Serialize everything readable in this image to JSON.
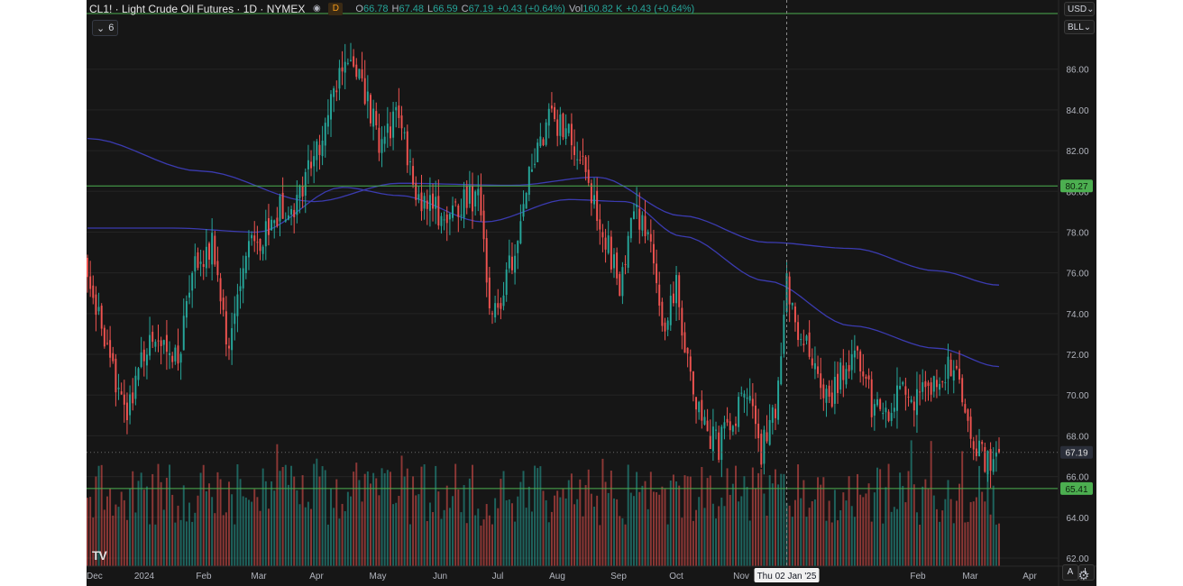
{
  "header": {
    "symbol_title": "CL1! · Light Crude Oil Futures · 1D · NYMEX",
    "delay_badge": "D",
    "ohlc": {
      "open_label": "O",
      "open": "66.78",
      "high_label": "H",
      "high": "67.48",
      "low_label": "L",
      "low": "66.59",
      "close_label": "C",
      "close": "67.19",
      "change": "+0.43 (+0.64%)",
      "volume_label": "Vol",
      "volume": "160.82 K",
      "volume_change": "+0.43 (+0.64%)"
    }
  },
  "indicator_toggle": {
    "count": "6"
  },
  "currency_select": {
    "value": "USD"
  },
  "unit_select": {
    "value": "BLL"
  },
  "crosshair_date_label": "Thu 02 Jan '25",
  "price_tags": {
    "resistance": "80.27",
    "last_price": "67.19",
    "support": "65.41"
  },
  "bottom_buttons": {
    "auto": "A",
    "log": "L"
  },
  "colors": {
    "background": "#161616",
    "up": "#26a69a",
    "down": "#ef5350",
    "ma": "#3b3bb0",
    "level_line": "#4caf50",
    "grid": "#242424"
  },
  "chart_data": {
    "type": "candlestick",
    "symbol": "CL1!",
    "interval": "1D",
    "y_axis_ticks": [
      "62.00",
      "64.00",
      "66.00",
      "68.00",
      "70.00",
      "72.00",
      "74.00",
      "76.00",
      "78.00",
      "80.00",
      "82.00",
      "84.00",
      "86.00"
    ],
    "y_range": [
      61.6,
      88.6
    ],
    "x_axis_labels": [
      "Dec",
      "2024",
      "Feb",
      "Mar",
      "Apr",
      "May",
      "Jun",
      "Jul",
      "Aug",
      "Sep",
      "Oct",
      "Nov",
      "Dec",
      "Feb",
      "Mar",
      "Apr"
    ],
    "horizontal_levels": [
      80.27,
      65.41
    ],
    "last_price": 67.19,
    "trading_days": 322,
    "key_closes": [
      [
        0,
        76.2
      ],
      [
        8,
        71.5
      ],
      [
        14,
        69.2
      ],
      [
        20,
        72.1
      ],
      [
        26,
        73.0
      ],
      [
        32,
        71.8
      ],
      [
        38,
        76.5
      ],
      [
        44,
        77.4
      ],
      [
        50,
        72.0
      ],
      [
        56,
        76.9
      ],
      [
        62,
        77.8
      ],
      [
        68,
        79.1
      ],
      [
        73,
        78.6
      ],
      [
        78,
        81.4
      ],
      [
        84,
        83.0
      ],
      [
        91,
        86.9
      ],
      [
        97,
        85.5
      ],
      [
        103,
        82.3
      ],
      [
        110,
        84.0
      ],
      [
        116,
        79.8
      ],
      [
        122,
        79.3
      ],
      [
        127,
        78.4
      ],
      [
        133,
        79.4
      ],
      [
        138,
        79.9
      ],
      [
        143,
        73.4
      ],
      [
        148,
        75.6
      ],
      [
        153,
        78.6
      ],
      [
        158,
        81.9
      ],
      [
        163,
        83.6
      ],
      [
        168,
        83.2
      ],
      [
        173,
        82.1
      ],
      [
        178,
        80.1
      ],
      [
        183,
        77.6
      ],
      [
        188,
        75.4
      ],
      [
        193,
        79.1
      ],
      [
        198,
        77.8
      ],
      [
        203,
        73.1
      ],
      [
        208,
        75.2
      ],
      [
        213,
        70.6
      ],
      [
        218,
        68.3
      ],
      [
        223,
        67.5
      ],
      [
        228,
        68.9
      ],
      [
        233,
        70.1
      ],
      [
        238,
        67.2
      ],
      [
        243,
        69.4
      ],
      [
        247,
        75.5
      ],
      [
        252,
        72.8
      ],
      [
        257,
        71.5
      ],
      [
        262,
        69.5
      ],
      [
        267,
        71.4
      ],
      [
        272,
        72.3
      ],
      [
        277,
        69.6
      ],
      [
        282,
        68.8
      ],
      [
        287,
        70.2
      ],
      [
        292,
        69.5
      ],
      [
        297,
        70.4
      ],
      [
        302,
        71.1
      ],
      [
        307,
        71.7
      ],
      [
        312,
        68.2
      ],
      [
        317,
        66.8
      ],
      [
        322,
        67.19
      ]
    ],
    "moving_averages": [
      {
        "period": 200,
        "points": [
          [
            0,
            82.6
          ],
          [
            40,
            81.0
          ],
          [
            80,
            79.5
          ],
          [
            110,
            80.4
          ],
          [
            150,
            80.3
          ],
          [
            180,
            80.7
          ],
          [
            210,
            78.8
          ],
          [
            240,
            77.5
          ],
          [
            270,
            77.2
          ],
          [
            300,
            76.1
          ],
          [
            322,
            75.4
          ]
        ]
      },
      {
        "period": 50,
        "points": [
          [
            0,
            78.2
          ],
          [
            30,
            78.2
          ],
          [
            60,
            78.0
          ],
          [
            90,
            80.2
          ],
          [
            110,
            79.8
          ],
          [
            140,
            78.5
          ],
          [
            170,
            79.6
          ],
          [
            190,
            79.5
          ],
          [
            210,
            77.8
          ],
          [
            240,
            75.6
          ],
          [
            270,
            73.4
          ],
          [
            300,
            72.3
          ],
          [
            322,
            71.4
          ]
        ]
      }
    ]
  }
}
